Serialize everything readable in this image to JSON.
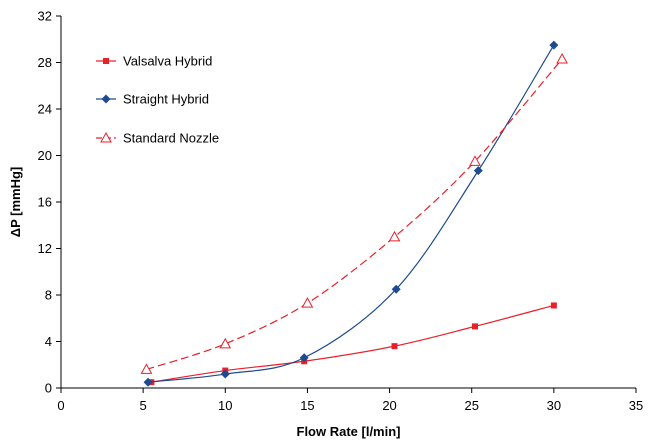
{
  "chart_data": {
    "type": "scatter",
    "title": "",
    "xlabel": "Flow Rate [l/min]",
    "ylabel": "ΔP [mmHg]",
    "xlim": [
      0,
      35
    ],
    "ylim": [
      0,
      32
    ],
    "xticks": [
      0,
      5,
      10,
      15,
      20,
      25,
      30,
      35
    ],
    "yticks": [
      0,
      4,
      8,
      12,
      16,
      20,
      24,
      28,
      32
    ],
    "grid": false,
    "legend_placement": "top-left",
    "series": [
      {
        "name": "Valsalva Hybrid",
        "marker": "square",
        "line_style": "solid",
        "color": "#e8202a",
        "x": [
          5.5,
          10,
          14.8,
          20.3,
          25.2,
          30
        ],
        "y": [
          0.5,
          1.5,
          2.3,
          3.6,
          5.3,
          7.1
        ]
      },
      {
        "name": "Straight Hybrid",
        "marker": "diamond",
        "line_style": "solid",
        "color": "#1e4b8f",
        "x": [
          5.3,
          10,
          14.8,
          20.4,
          25.4,
          30
        ],
        "y": [
          0.5,
          1.2,
          2.6,
          8.5,
          18.7,
          29.5
        ]
      },
      {
        "name": "Standard Nozzle",
        "marker": "open-triangle",
        "line_style": "dashed",
        "color": "#e8202a",
        "x": [
          5.2,
          10,
          15,
          20.3,
          25.2,
          30.5
        ],
        "y": [
          1.6,
          3.8,
          7.3,
          13.0,
          19.5,
          28.3
        ]
      }
    ]
  }
}
